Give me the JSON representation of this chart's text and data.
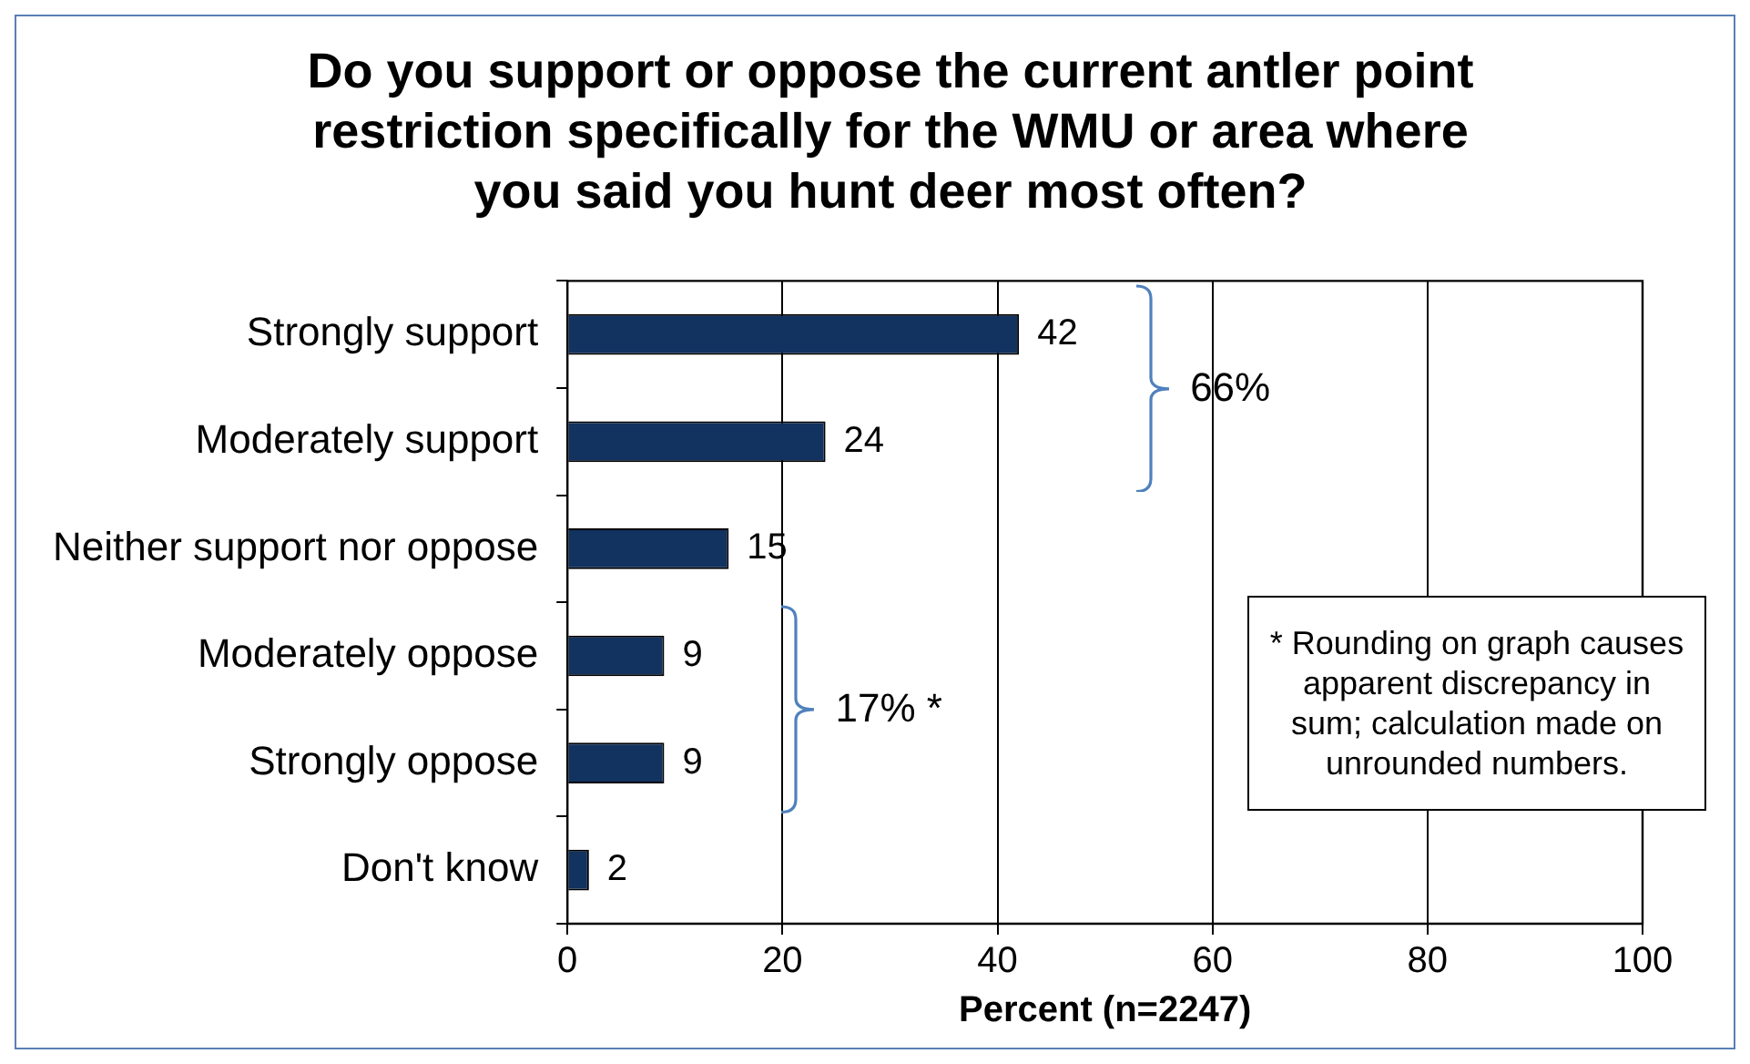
{
  "chart_data": {
    "type": "bar",
    "orientation": "horizontal",
    "title": "Do you support or oppose the current antler point restriction specifically for the WMU or area where you said you hunt deer most often?",
    "xlabel": "Percent (n=2247)",
    "categories": [
      "Strongly support",
      "Moderately support",
      "Neither support nor oppose",
      "Moderately oppose",
      "Strongly oppose",
      "Don't know"
    ],
    "values": [
      42,
      24,
      15,
      9,
      9,
      2
    ],
    "color": "#12325f",
    "xlim": [
      0,
      100
    ],
    "xticks": [
      0,
      20,
      40,
      60,
      80,
      100
    ],
    "grid": "x",
    "data_labels": true,
    "annotations": [
      "66%",
      "17% *",
      "* Rounding on graph causes apparent discrepancy in sum; calculation made on unrounded numbers."
    ]
  }
}
